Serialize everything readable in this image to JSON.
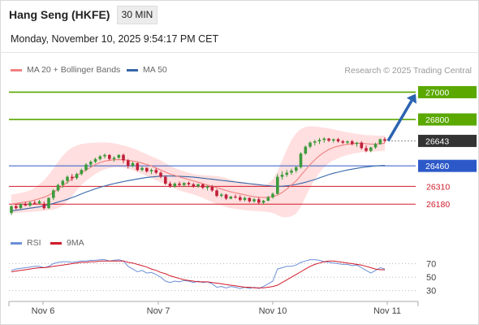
{
  "header": {
    "instrument": "Hang Seng (HKFE)",
    "timeframe": "30 MIN",
    "datetime": "Monday, November 10, 2025 9:54:17 PM CET"
  },
  "legend": {
    "ma20_label": "MA 20 + Bollinger Bands",
    "ma50_label": "MA 50",
    "credit": "Research © 2025 Trading Central"
  },
  "rsi_legend": {
    "rsi_label": "RSI",
    "ma_label": "9MA"
  },
  "colors": {
    "up": "#3d9a3d",
    "down": "#c0203a",
    "resistance": "#5aa800",
    "support": "#2d59c8",
    "minor_support": "#d11a2a",
    "ma20": "#f08080",
    "ma50": "#3566a8",
    "band": "#ffd9d9",
    "arrow": "#2b63b0",
    "rsi": "#6b8fd6",
    "rsi_ma": "#d11a2a",
    "current": "#333333"
  },
  "chart_data": {
    "type": "line",
    "title": "Hang Seng (HKFE)",
    "x_labels": [
      "Nov 6",
      "Nov 7",
      "Nov 10",
      "Nov 11"
    ],
    "price": {
      "ylim": [
        26080,
        27080
      ],
      "current": 26643,
      "levels": [
        {
          "value": 27000,
          "label": "27000",
          "kind": "resistance"
        },
        {
          "value": 26800,
          "label": "26800",
          "kind": "resistance"
        },
        {
          "value": 26643,
          "label": "26643",
          "kind": "current"
        },
        {
          "value": 26460,
          "label": "26460",
          "kind": "support"
        },
        {
          "value": 26310,
          "label": "26310",
          "kind": "minor"
        },
        {
          "value": 26180,
          "label": "26180",
          "kind": "minor"
        }
      ],
      "target_arrow": {
        "from": 26643,
        "to": 27000
      },
      "ohlc": [
        [
          26115,
          26170,
          26100,
          26165
        ],
        [
          26165,
          26180,
          26140,
          26150
        ],
        [
          26150,
          26185,
          26145,
          26180
        ],
        [
          26180,
          26195,
          26165,
          26170
        ],
        [
          26170,
          26200,
          26160,
          26190
        ],
        [
          26190,
          26205,
          26175,
          26185
        ],
        [
          26185,
          26210,
          26180,
          26200
        ],
        [
          26180,
          26200,
          26140,
          26150
        ],
        [
          26150,
          26230,
          26145,
          26225
        ],
        [
          26225,
          26290,
          26210,
          26280
        ],
        [
          26280,
          26330,
          26270,
          26320
        ],
        [
          26320,
          26360,
          26300,
          26350
        ],
        [
          26350,
          26390,
          26330,
          26380
        ],
        [
          26380,
          26400,
          26350,
          26370
        ],
        [
          26370,
          26410,
          26360,
          26400
        ],
        [
          26400,
          26440,
          26390,
          26430
        ],
        [
          26430,
          26480,
          26420,
          26470
        ],
        [
          26470,
          26500,
          26450,
          26490
        ],
        [
          26490,
          26520,
          26480,
          26510
        ],
        [
          26510,
          26540,
          26500,
          26530
        ],
        [
          26530,
          26550,
          26515,
          26540
        ],
        [
          26540,
          26545,
          26500,
          26510
        ],
        [
          26510,
          26530,
          26490,
          26520
        ],
        [
          26520,
          26545,
          26510,
          26540
        ],
        [
          26540,
          26550,
          26480,
          26500
        ],
        [
          26500,
          26510,
          26440,
          26460
        ],
        [
          26460,
          26490,
          26450,
          26480
        ],
        [
          26480,
          26485,
          26420,
          26430
        ],
        [
          26430,
          26455,
          26420,
          26445
        ],
        [
          26445,
          26450,
          26410,
          26420
        ],
        [
          26420,
          26440,
          26400,
          26430
        ],
        [
          26430,
          26445,
          26400,
          26410
        ],
        [
          26410,
          26420,
          26370,
          26380
        ],
        [
          26380,
          26390,
          26320,
          26330
        ],
        [
          26330,
          26345,
          26300,
          26310
        ],
        [
          26310,
          26340,
          26300,
          26330
        ],
        [
          26330,
          26345,
          26310,
          26320
        ],
        [
          26320,
          26340,
          26305,
          26335
        ],
        [
          26335,
          26345,
          26315,
          26325
        ],
        [
          26325,
          26335,
          26300,
          26310
        ],
        [
          26310,
          26330,
          26300,
          26325
        ],
        [
          26325,
          26330,
          26290,
          26300
        ],
        [
          26300,
          26315,
          26280,
          26310
        ],
        [
          26310,
          26320,
          26270,
          26280
        ],
        [
          26280,
          26290,
          26230,
          26240
        ],
        [
          26240,
          26260,
          26230,
          26250
        ],
        [
          26250,
          26255,
          26210,
          26220
        ],
        [
          26220,
          26240,
          26215,
          26235
        ],
        [
          26235,
          26250,
          26220,
          26230
        ],
        [
          26230,
          26245,
          26200,
          26210
        ],
        [
          26210,
          26235,
          26200,
          26225
        ],
        [
          26225,
          26230,
          26190,
          26200
        ],
        [
          26200,
          26225,
          26190,
          26215
        ],
        [
          26215,
          26230,
          26180,
          26190
        ],
        [
          26190,
          26210,
          26180,
          26205
        ],
        [
          26205,
          26240,
          26200,
          26230
        ],
        [
          26230,
          26265,
          26220,
          26255
        ],
        [
          26255,
          26400,
          26250,
          26380
        ],
        [
          26380,
          26420,
          26360,
          26395
        ],
        [
          26395,
          26430,
          26380,
          26410
        ],
        [
          26410,
          26440,
          26395,
          26425
        ],
        [
          26425,
          26460,
          26410,
          26450
        ],
        [
          26450,
          26560,
          26440,
          26550
        ],
        [
          26550,
          26610,
          26540,
          26600
        ],
        [
          26600,
          26640,
          26590,
          26630
        ],
        [
          26630,
          26650,
          26610,
          26640
        ],
        [
          26640,
          26665,
          26620,
          26650
        ],
        [
          26650,
          26670,
          26630,
          26660
        ],
        [
          26660,
          26665,
          26635,
          26645
        ],
        [
          26645,
          26660,
          26630,
          26655
        ],
        [
          26655,
          26665,
          26630,
          26640
        ],
        [
          26640,
          26650,
          26620,
          26630
        ],
        [
          26630,
          26645,
          26620,
          26640
        ],
        [
          26640,
          26650,
          26610,
          26620
        ],
        [
          26620,
          26635,
          26600,
          26630
        ],
        [
          26630,
          26640,
          26580,
          26590
        ],
        [
          26590,
          26610,
          26560,
          26570
        ],
        [
          26570,
          26600,
          26560,
          26595
        ],
        [
          26595,
          26630,
          26585,
          26620
        ],
        [
          26620,
          26660,
          26615,
          26655
        ],
        [
          26655,
          26670,
          26630,
          26643
        ]
      ],
      "ma20": [
        26180,
        26185,
        26190,
        26195,
        26200,
        26210,
        26220,
        26230,
        26245,
        26265,
        26290,
        26315,
        26340,
        26365,
        26390,
        26410,
        26430,
        26450,
        26470,
        26485,
        26495,
        26500,
        26505,
        26505,
        26505,
        26500,
        26495,
        26490,
        26480,
        26470,
        26460,
        26445,
        26430,
        26415,
        26400,
        26390,
        26380,
        26370,
        26360,
        26350,
        26340,
        26330,
        26320,
        26310,
        26300,
        26290,
        26280,
        26270,
        26262,
        26255,
        26248,
        26240,
        26235,
        26230,
        26228,
        26230,
        26235,
        26245,
        26265,
        26290,
        26320,
        26350,
        26390,
        26430,
        26470,
        26505,
        26535,
        26560,
        26580,
        26595,
        26605,
        26612,
        26618,
        26622,
        26625,
        26625,
        26622,
        26620,
        26620,
        26622,
        26625
      ],
      "bb_upper": [
        26250,
        26255,
        26262,
        26270,
        26280,
        26300,
        26325,
        26355,
        26395,
        26440,
        26490,
        26535,
        26570,
        26595,
        26610,
        26620,
        26625,
        26628,
        26630,
        26632,
        26632,
        26630,
        26625,
        26618,
        26610,
        26600,
        26590,
        26575,
        26560,
        26545,
        26530,
        26515,
        26500,
        26480,
        26460,
        26445,
        26430,
        26420,
        26410,
        26400,
        26395,
        26392,
        26390,
        26388,
        26385,
        26380,
        26370,
        26360,
        26350,
        26345,
        26338,
        26330,
        26325,
        26322,
        26320,
        26330,
        26360,
        26420,
        26500,
        26580,
        26650,
        26700,
        26730,
        26745,
        26750,
        26748,
        26745,
        26740,
        26735,
        26728,
        26720,
        26712,
        26705,
        26700,
        26695,
        26690,
        26686,
        26684,
        26683,
        26682,
        26680
      ],
      "bb_lower": [
        26110,
        26115,
        26118,
        26120,
        26122,
        26125,
        26128,
        26130,
        26135,
        26140,
        26150,
        26170,
        26200,
        26240,
        26280,
        26320,
        26350,
        26375,
        26400,
        26420,
        26435,
        26445,
        26450,
        26450,
        26448,
        26440,
        26428,
        26415,
        26400,
        26385,
        26370,
        26355,
        26340,
        26325,
        26310,
        26295,
        26280,
        26270,
        26260,
        26250,
        26240,
        26225,
        26210,
        26195,
        26180,
        26170,
        26160,
        26150,
        26145,
        26140,
        26135,
        26132,
        26130,
        26128,
        26125,
        26122,
        26115,
        26100,
        26085,
        26085,
        26090,
        26110,
        26160,
        26230,
        26300,
        26360,
        26410,
        26450,
        26480,
        26500,
        26515,
        26530,
        26540,
        26548,
        26555,
        26560,
        26562,
        26564,
        26566,
        26568,
        26570
      ],
      "ma50": [
        26130,
        26135,
        26140,
        26145,
        26150,
        26155,
        26160,
        26168,
        26176,
        26185,
        26195,
        26205,
        26215,
        26228,
        26240,
        26255,
        26268,
        26280,
        26292,
        26303,
        26313,
        26322,
        26330,
        26338,
        26345,
        26352,
        26358,
        26364,
        26370,
        26375,
        26379,
        26382,
        26385,
        26386,
        26386,
        26385,
        26384,
        26382,
        26380,
        26377,
        26374,
        26370,
        26366,
        26362,
        26358,
        26354,
        26350,
        26346,
        26342,
        26338,
        26334,
        26330,
        26326,
        26322,
        26318,
        26315,
        26312,
        26310,
        26311,
        26314,
        26318,
        26324,
        26332,
        26340,
        26350,
        26360,
        26372,
        26384,
        26396,
        26406,
        26414,
        26422,
        26430,
        26436,
        26442,
        26448,
        26452,
        26456,
        26460,
        26462,
        26464
      ]
    },
    "rsi": {
      "ylim": [
        15,
        90
      ],
      "ticks": [
        70,
        50,
        30
      ],
      "values": [
        60,
        62,
        63,
        64,
        65,
        66,
        66,
        64,
        66,
        70,
        72,
        73,
        73,
        72,
        73,
        74,
        74,
        75,
        75,
        76,
        76,
        74,
        75,
        76,
        74,
        66,
        62,
        58,
        60,
        56,
        57,
        54,
        50,
        44,
        42,
        44,
        43,
        45,
        44,
        42,
        44,
        42,
        43,
        40,
        35,
        36,
        34,
        36,
        35,
        33,
        35,
        33,
        35,
        33,
        36,
        40,
        44,
        62,
        64,
        66,
        66,
        68,
        72,
        74,
        76,
        76,
        75,
        73,
        72,
        71,
        70,
        69,
        69,
        67,
        68,
        64,
        60,
        56,
        60,
        64,
        62
      ],
      "ma9": [
        58,
        59,
        60,
        61,
        62,
        63,
        64,
        64,
        65,
        66,
        67,
        68,
        69,
        70,
        71,
        72,
        72,
        73,
        73,
        74,
        74,
        74,
        74,
        74,
        74,
        72,
        71,
        69,
        67,
        65,
        62,
        60,
        57,
        55,
        52,
        50,
        48,
        46,
        45,
        44,
        43,
        43,
        43,
        42,
        41,
        40,
        39,
        38,
        37,
        36,
        35,
        35,
        34,
        34,
        34,
        35,
        36,
        38,
        42,
        46,
        50,
        54,
        58,
        62,
        66,
        69,
        71,
        73,
        74,
        74,
        73,
        72,
        71,
        70,
        69,
        68,
        66,
        64,
        62,
        61,
        61
      ]
    }
  }
}
